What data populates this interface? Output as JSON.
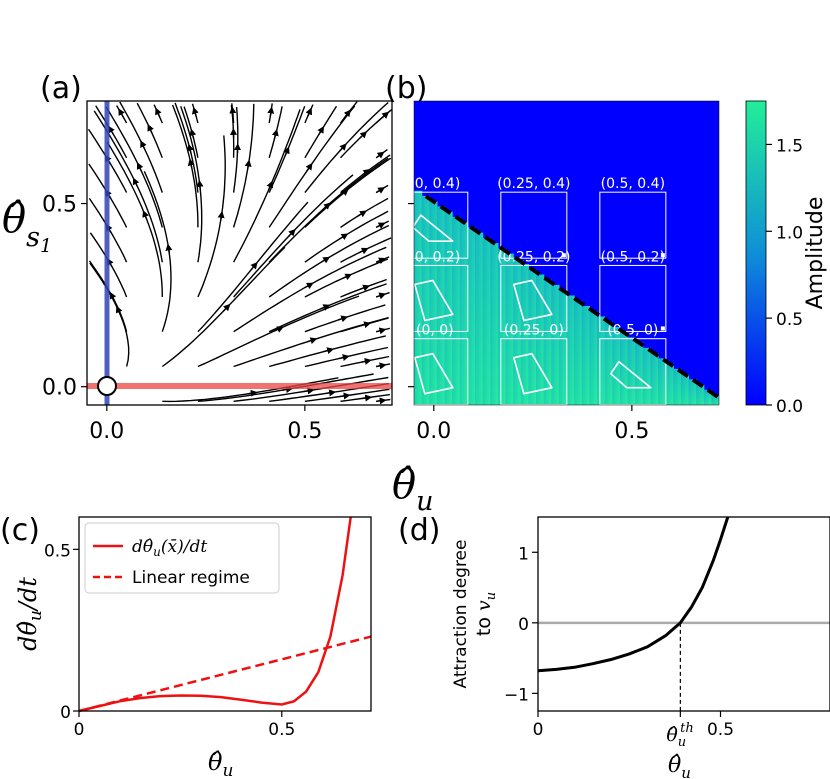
{
  "figure": {
    "panel_labels": [
      "(a)",
      "(b)",
      "(c)",
      "(d)"
    ],
    "shared_xlabel": "θ̂u"
  },
  "chart_data": [
    {
      "panel": "(a)",
      "type": "streamplot",
      "ylabel": "θ̂s1",
      "xlim": [
        -0.05,
        0.72
      ],
      "ylim": [
        -0.05,
        0.78
      ],
      "xticks": [
        "0.0",
        "0.5"
      ],
      "yticks": [
        "0.0",
        "0.5"
      ],
      "xtick_values": [
        0.0,
        0.5
      ],
      "ytick_values": [
        0.0,
        0.5
      ],
      "colors": {
        "stream": "#000000",
        "vertical_manifold": "#3344bb",
        "horizontal_manifold": "#ee4444",
        "fixed_point": "#ffffff"
      },
      "fixed_point": [
        0.0,
        0.0
      ],
      "vertical_manifold_x": 0.0,
      "horizontal_manifold_y": 0.0
    },
    {
      "panel": "(b)",
      "type": "heatmap",
      "xlim": [
        -0.05,
        0.72
      ],
      "ylim": [
        -0.05,
        0.78
      ],
      "xticks": [
        "0.0",
        "0.5"
      ],
      "xtick_values": [
        0.0,
        0.5
      ],
      "colorbar_label": "Amplitude",
      "colorbar_ticks": [
        "0.0",
        "0.5",
        "1.0",
        "1.5"
      ],
      "colorbar_tick_values": [
        0.0,
        0.5,
        1.0,
        1.5
      ],
      "colorbar_range": [
        0.0,
        1.75
      ],
      "colors": {
        "low": "#0000ff",
        "mid": "#0f8fd7",
        "high": "#22ee99"
      },
      "threshold_line": {
        "style": "dashed",
        "color": "#000000",
        "x": [
          -0.02,
          0.72
        ],
        "y": [
          0.52,
          -0.03
        ]
      },
      "insets": [
        {
          "label": "(0, 0.4)",
          "center": [
            0.0,
            0.4
          ],
          "shape": "triangle"
        },
        {
          "label": "(0.25, 0.4)",
          "center": [
            0.25,
            0.4
          ],
          "shape": "dot"
        },
        {
          "label": "(0.5, 0.4)",
          "center": [
            0.5,
            0.4
          ],
          "shape": "dot"
        },
        {
          "label": "(0, 0.2)",
          "center": [
            0.0,
            0.2
          ],
          "shape": "quad"
        },
        {
          "label": "(0.25, 0.2)",
          "center": [
            0.25,
            0.2
          ],
          "shape": "quad"
        },
        {
          "label": "(0.5, 0.2)",
          "center": [
            0.5,
            0.2
          ],
          "shape": "dot"
        },
        {
          "label": "(0, 0)",
          "center": [
            0.0,
            0.0
          ],
          "shape": "quad"
        },
        {
          "label": "(0.25, 0)",
          "center": [
            0.25,
            0.0
          ],
          "shape": "quad"
        },
        {
          "label": "(0.5, 0)",
          "center": [
            0.5,
            0.0
          ],
          "shape": "triangle"
        }
      ]
    },
    {
      "panel": "(c)",
      "type": "line",
      "xlabel": "θ̂u",
      "ylabel": "dθ̂u/dt",
      "xlim": [
        0.0,
        0.72
      ],
      "ylim": [
        0.0,
        0.6
      ],
      "xticks": [
        "0",
        "0.5"
      ],
      "xtick_values": [
        0.0,
        0.5
      ],
      "yticks": [
        "0",
        "0.5"
      ],
      "ytick_values": [
        0.0,
        0.5
      ],
      "legend": "top-left",
      "series": [
        {
          "name": "dθ̂u(x̄)/dt",
          "style": "solid",
          "color": "#ee1111",
          "x": [
            0.0,
            0.05,
            0.1,
            0.15,
            0.2,
            0.25,
            0.3,
            0.35,
            0.4,
            0.45,
            0.5,
            0.53,
            0.56,
            0.59,
            0.62,
            0.65,
            0.67
          ],
          "y": [
            0.0,
            0.015,
            0.03,
            0.04,
            0.046,
            0.048,
            0.047,
            0.043,
            0.035,
            0.026,
            0.02,
            0.03,
            0.06,
            0.12,
            0.23,
            0.42,
            0.6
          ]
        },
        {
          "name": "Linear regime",
          "style": "dashed",
          "color": "#ee1111",
          "x": [
            0.0,
            0.72
          ],
          "y": [
            0.0,
            0.23
          ]
        }
      ]
    },
    {
      "panel": "(d)",
      "type": "line",
      "xlabel": "θ̂u",
      "ylabel_line1": "Attraction degree",
      "ylabel_line2": "to vu",
      "xlim": [
        0.0,
        0.8
      ],
      "ylim": [
        -1.25,
        1.5
      ],
      "xticks": [
        "0",
        "θ̂uth",
        "0.5"
      ],
      "xtick_values": [
        0.0,
        0.39,
        0.5
      ],
      "yticks": [
        "−1",
        "0",
        "1"
      ],
      "ytick_values": [
        -1,
        0,
        1
      ],
      "threshold_x": 0.39,
      "zero_line_color": "#aaaaaa",
      "series": [
        {
          "color": "#000000",
          "x": [
            0.0,
            0.05,
            0.1,
            0.15,
            0.2,
            0.25,
            0.3,
            0.35,
            0.39,
            0.42,
            0.45,
            0.48,
            0.5,
            0.52
          ],
          "y": [
            -0.68,
            -0.66,
            -0.63,
            -0.58,
            -0.52,
            -0.44,
            -0.34,
            -0.18,
            0.0,
            0.22,
            0.5,
            0.88,
            1.18,
            1.5
          ]
        }
      ]
    }
  ]
}
